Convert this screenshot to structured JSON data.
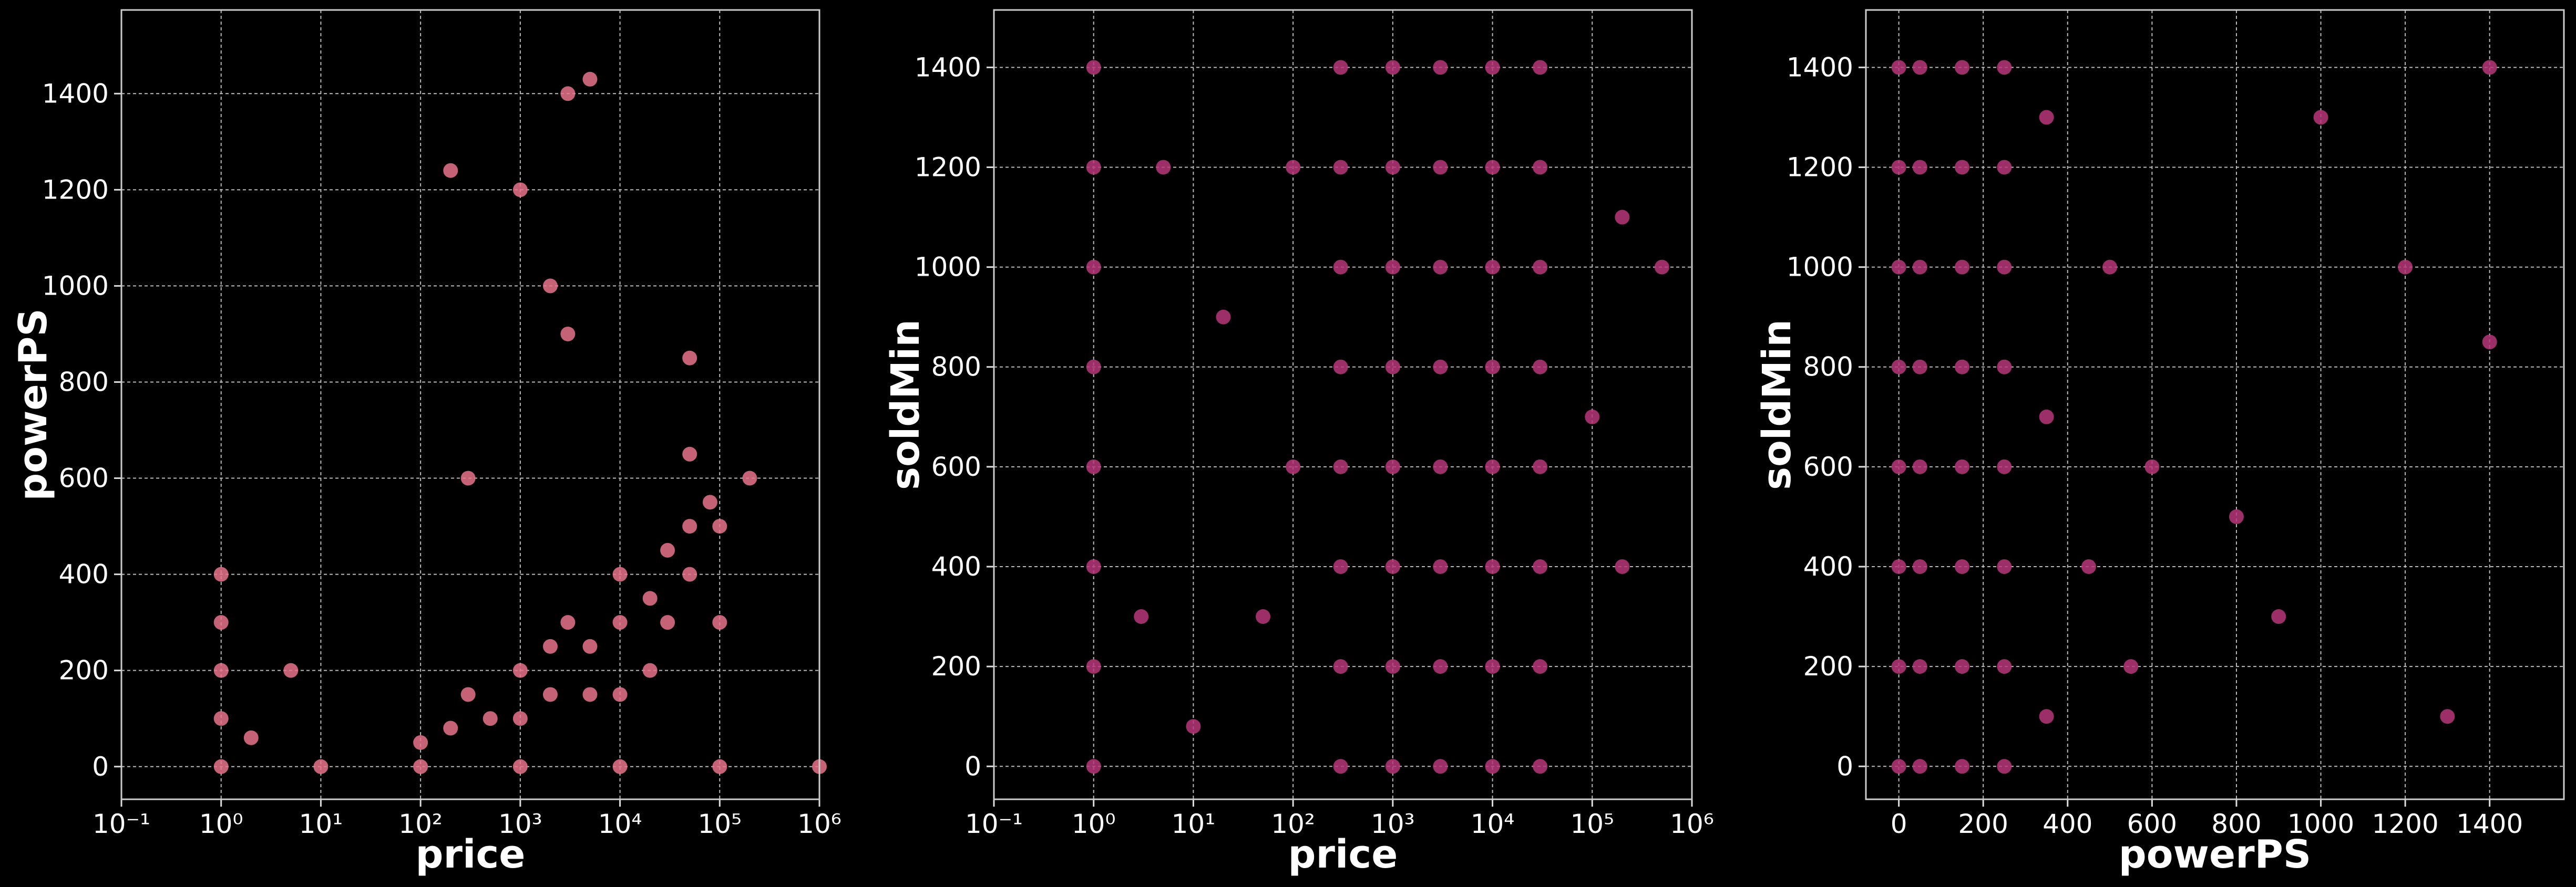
{
  "chart_data": [
    {
      "type": "scatter",
      "xlabel": "price",
      "ylabel": "powerPS",
      "log_x": true,
      "grid": true,
      "color": "#e8738a",
      "x": [
        1,
        1,
        1,
        1,
        1,
        100,
        200,
        300,
        500,
        1000,
        1000,
        2000,
        2000,
        3000,
        5000,
        5000,
        10000,
        10000,
        10000,
        20000,
        20000,
        30000,
        30000,
        50000,
        50000,
        80000,
        100000,
        100000,
        10,
        100,
        1000,
        10000,
        100000,
        1000000,
        3000,
        5000,
        1000,
        2000,
        200,
        300,
        3000,
        50000,
        50000,
        200000,
        5,
        2
      ],
      "y": [
        0,
        100,
        200,
        300,
        400,
        50,
        80,
        150,
        100,
        100,
        200,
        150,
        250,
        300,
        150,
        250,
        150,
        300,
        400,
        200,
        350,
        300,
        450,
        400,
        500,
        550,
        300,
        500,
        0,
        0,
        0,
        0,
        0,
        0,
        1400,
        1430,
        1200,
        1000,
        1240,
        600,
        900,
        850,
        650,
        600,
        200,
        60
      ],
      "xlim": [
        0.1,
        1000000
      ],
      "xticks": [
        {
          "value": 0.1,
          "label": "10⁻¹"
        },
        {
          "value": 1,
          "label": "10⁰"
        },
        {
          "value": 10,
          "label": "10¹"
        },
        {
          "value": 100,
          "label": "10²"
        },
        {
          "value": 1000,
          "label": "10³"
        },
        {
          "value": 10000,
          "label": "10⁴"
        },
        {
          "value": 100000,
          "label": "10⁵"
        },
        {
          "value": 1000000,
          "label": "10⁶"
        }
      ],
      "ylim": [
        -68,
        1574
      ],
      "yticks": [
        0,
        200,
        400,
        600,
        800,
        1000,
        1200,
        1400
      ]
    },
    {
      "type": "scatter",
      "xlabel": "price",
      "ylabel": "soldMin",
      "log_x": true,
      "grid": true,
      "color": "#b8377a",
      "x": [
        1,
        1,
        1,
        1,
        1,
        1,
        1,
        1,
        300,
        300,
        300,
        300,
        300,
        300,
        300,
        300,
        1000,
        1000,
        1000,
        1000,
        1000,
        1000,
        1000,
        1000,
        3000,
        3000,
        3000,
        3000,
        3000,
        3000,
        3000,
        3000,
        10000,
        10000,
        10000,
        10000,
        10000,
        10000,
        10000,
        10000,
        30000,
        30000,
        30000,
        30000,
        30000,
        30000,
        30000,
        30000,
        100,
        100,
        50,
        20,
        10,
        200000,
        200000,
        100000,
        500000,
        5,
        3
      ],
      "y": [
        0,
        200,
        400,
        600,
        800,
        1000,
        1200,
        1400,
        0,
        200,
        400,
        600,
        800,
        1000,
        1200,
        1400,
        0,
        200,
        400,
        600,
        800,
        1000,
        1200,
        1400,
        0,
        200,
        400,
        600,
        800,
        1000,
        1200,
        1400,
        0,
        200,
        400,
        600,
        800,
        1000,
        1200,
        1400,
        0,
        200,
        400,
        600,
        800,
        1000,
        1200,
        1400,
        600,
        1200,
        300,
        900,
        80,
        400,
        1100,
        700,
        1000,
        1200,
        300
      ],
      "xlim": [
        0.1,
        1000000
      ],
      "xticks": [
        {
          "value": 0.1,
          "label": "10⁻¹"
        },
        {
          "value": 1,
          "label": "10⁰"
        },
        {
          "value": 10,
          "label": "10¹"
        },
        {
          "value": 100,
          "label": "10²"
        },
        {
          "value": 1000,
          "label": "10³"
        },
        {
          "value": 10000,
          "label": "10⁴"
        },
        {
          "value": 100000,
          "label": "10⁵"
        },
        {
          "value": 1000000,
          "label": "10⁶"
        }
      ],
      "ylim": [
        -66,
        1515
      ],
      "yticks": [
        0,
        200,
        400,
        600,
        800,
        1000,
        1200,
        1400
      ]
    },
    {
      "type": "scatter",
      "xlabel": "powerPS",
      "ylabel": "soldMin",
      "log_x": false,
      "grid": true,
      "color": "#b8377a",
      "x": [
        0,
        0,
        0,
        0,
        0,
        0,
        0,
        0,
        50,
        50,
        50,
        50,
        50,
        50,
        50,
        50,
        150,
        150,
        150,
        150,
        150,
        150,
        150,
        150,
        250,
        250,
        250,
        250,
        250,
        250,
        250,
        250,
        350,
        350,
        350,
        450,
        500,
        550,
        600,
        800,
        1000,
        1200,
        1400,
        1400,
        900,
        1300
      ],
      "y": [
        0,
        200,
        400,
        600,
        800,
        1000,
        1200,
        1400,
        0,
        200,
        400,
        600,
        800,
        1000,
        1200,
        1400,
        0,
        200,
        400,
        600,
        800,
        1000,
        1200,
        1400,
        0,
        200,
        400,
        600,
        800,
        1000,
        1200,
        1400,
        100,
        700,
        1300,
        400,
        1000,
        200,
        600,
        500,
        1300,
        1000,
        850,
        1400,
        300,
        100
      ],
      "xlim": [
        -78,
        1576
      ],
      "xticks": [
        0,
        200,
        400,
        600,
        800,
        1000,
        1200,
        1400
      ],
      "ylim": [
        -66,
        1515
      ],
      "yticks": [
        0,
        200,
        400,
        600,
        800,
        1000,
        1200,
        1400
      ]
    }
  ]
}
